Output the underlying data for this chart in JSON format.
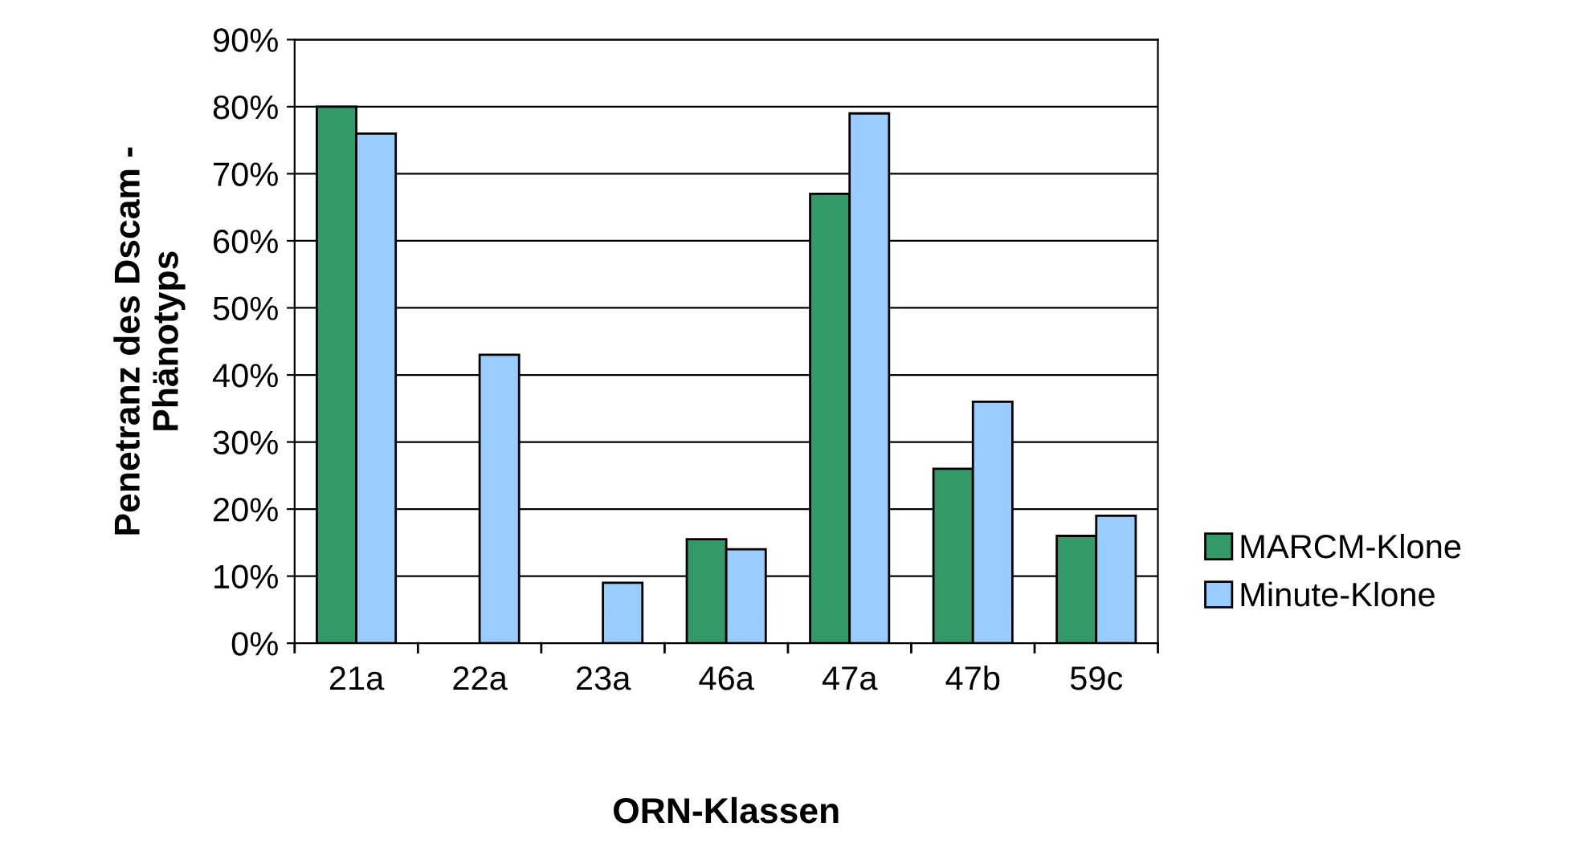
{
  "chart_data": {
    "type": "bar",
    "xlabel": "ORN-Klassen",
    "ylabel": "Penetranz des Dscam -\nPhänotyps",
    "categories": [
      "21a",
      "22a",
      "23a",
      "46a",
      "47a",
      "47b",
      "59c"
    ],
    "series": [
      {
        "name": "MARCM-Klone",
        "color": "#339966",
        "values": [
          80,
          null,
          null,
          15.5,
          67,
          26,
          16
        ]
      },
      {
        "name": "Minute-Klone",
        "color": "#99ccff",
        "values": [
          76,
          43,
          9,
          14,
          79,
          36,
          19
        ]
      }
    ],
    "ylim": [
      0,
      90
    ],
    "yticks": [
      {
        "value": 0,
        "label": "0%"
      },
      {
        "value": 10,
        "label": "10%"
      },
      {
        "value": 20,
        "label": "20%"
      },
      {
        "value": 30,
        "label": "30%"
      },
      {
        "value": 40,
        "label": "40%"
      },
      {
        "value": 50,
        "label": "50%"
      },
      {
        "value": 60,
        "label": "60%"
      },
      {
        "value": 70,
        "label": "70%"
      },
      {
        "value": 80,
        "label": "80%"
      },
      {
        "value": 90,
        "label": "90%"
      }
    ],
    "grid": "y",
    "legend": "right"
  }
}
